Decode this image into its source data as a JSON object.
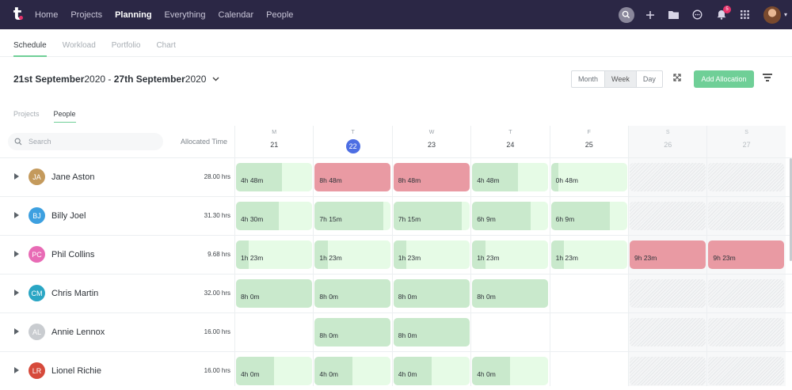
{
  "nav": {
    "logo": "t",
    "links": [
      {
        "label": "Home",
        "active": false
      },
      {
        "label": "Projects",
        "active": false
      },
      {
        "label": "Planning",
        "active": true
      },
      {
        "label": "Everything",
        "active": false
      },
      {
        "label": "Calendar",
        "active": false
      },
      {
        "label": "People",
        "active": false
      }
    ],
    "notification_count": "5"
  },
  "subtabs": [
    {
      "label": "Schedule",
      "active": true
    },
    {
      "label": "Workload",
      "active": false
    },
    {
      "label": "Portfolio",
      "active": false
    },
    {
      "label": "Chart",
      "active": false
    }
  ],
  "date_range": {
    "start_bold": "21st September",
    "start_year": " 2020",
    "sep": " - ",
    "end_bold": "27th September",
    "end_year": " 2020"
  },
  "view_modes": [
    {
      "label": "Month",
      "active": false
    },
    {
      "label": "Week",
      "active": true
    },
    {
      "label": "Day",
      "active": false
    }
  ],
  "add_button_label": "Add Allocation",
  "group_tabs": [
    {
      "label": "Projects",
      "active": false
    },
    {
      "label": "People",
      "active": true
    }
  ],
  "search": {
    "placeholder": "Search",
    "value": ""
  },
  "allocated_time_label": "Allocated Time",
  "days": [
    {
      "dow": "M",
      "date": "21",
      "today": false,
      "weekend": false
    },
    {
      "dow": "T",
      "date": "22",
      "today": true,
      "weekend": false
    },
    {
      "dow": "W",
      "date": "23",
      "today": false,
      "weekend": false
    },
    {
      "dow": "T",
      "date": "24",
      "today": false,
      "weekend": false
    },
    {
      "dow": "F",
      "date": "25",
      "today": false,
      "weekend": false
    },
    {
      "dow": "S",
      "date": "26",
      "today": false,
      "weekend": true
    },
    {
      "dow": "S",
      "date": "27",
      "today": false,
      "weekend": true
    }
  ],
  "colors": {
    "avatar": [
      "#c49a5c",
      "#3da0e0",
      "#e86bb5",
      "#2aa6c4",
      "#c9ccd0",
      "#d64a3b"
    ]
  },
  "people": [
    {
      "name": "Jane Aston",
      "initials": "JA",
      "hours": "28.00 hrs",
      "cells": [
        {
          "type": "green",
          "label": "4h 48m",
          "fill": 0.6
        },
        {
          "type": "red",
          "label": "8h 48m"
        },
        {
          "type": "red",
          "label": "8h 48m"
        },
        {
          "type": "green",
          "label": "4h 48m",
          "fill": 0.6
        },
        {
          "type": "green",
          "label": "0h 48m",
          "fill": 0.1
        },
        {
          "type": "hatch"
        },
        {
          "type": "hatch"
        }
      ]
    },
    {
      "name": "Billy Joel",
      "initials": "BJ",
      "hours": "31.30 hrs",
      "cells": [
        {
          "type": "green",
          "label": "4h 30m",
          "fill": 0.56
        },
        {
          "type": "green",
          "label": "7h 15m",
          "fill": 0.9
        },
        {
          "type": "green",
          "label": "7h 15m",
          "fill": 0.9
        },
        {
          "type": "green",
          "label": "6h 9m",
          "fill": 0.77
        },
        {
          "type": "green",
          "label": "6h 9m",
          "fill": 0.77
        },
        {
          "type": "hatch"
        },
        {
          "type": "hatch"
        }
      ]
    },
    {
      "name": "Phil Collins",
      "initials": "PC",
      "hours": "9.68 hrs",
      "cells": [
        {
          "type": "green",
          "label": "1h 23m",
          "fill": 0.17
        },
        {
          "type": "green",
          "label": "1h 23m",
          "fill": 0.17
        },
        {
          "type": "green",
          "label": "1h 23m",
          "fill": 0.17
        },
        {
          "type": "green",
          "label": "1h 23m",
          "fill": 0.17
        },
        {
          "type": "green",
          "label": "1h 23m",
          "fill": 0.17
        },
        {
          "type": "red",
          "label": "9h 23m"
        },
        {
          "type": "red",
          "label": "9h 23m"
        }
      ]
    },
    {
      "name": "Chris Martin",
      "initials": "CM",
      "hours": "32.00 hrs",
      "cells": [
        {
          "type": "green",
          "label": "8h 0m",
          "fill": 1
        },
        {
          "type": "green",
          "label": "8h 0m",
          "fill": 1
        },
        {
          "type": "green",
          "label": "8h 0m",
          "fill": 1
        },
        {
          "type": "green",
          "label": "8h 0m",
          "fill": 1
        },
        {
          "type": "empty"
        },
        {
          "type": "hatch"
        },
        {
          "type": "hatch"
        }
      ]
    },
    {
      "name": "Annie Lennox",
      "initials": "AL",
      "hours": "16.00 hrs",
      "cells": [
        {
          "type": "empty"
        },
        {
          "type": "green",
          "label": "8h 0m",
          "fill": 1
        },
        {
          "type": "green",
          "label": "8h 0m",
          "fill": 1
        },
        {
          "type": "empty"
        },
        {
          "type": "empty"
        },
        {
          "type": "hatch"
        },
        {
          "type": "hatch"
        }
      ]
    },
    {
      "name": "Lionel Richie",
      "initials": "LR",
      "hours": "16.00 hrs",
      "cells": [
        {
          "type": "green",
          "label": "4h 0m",
          "fill": 0.5
        },
        {
          "type": "green",
          "label": "4h 0m",
          "fill": 0.5
        },
        {
          "type": "green",
          "label": "4h 0m",
          "fill": 0.5
        },
        {
          "type": "green",
          "label": "4h 0m",
          "fill": 0.5
        },
        {
          "type": "empty"
        },
        {
          "type": "hatch"
        },
        {
          "type": "hatch"
        }
      ]
    }
  ]
}
